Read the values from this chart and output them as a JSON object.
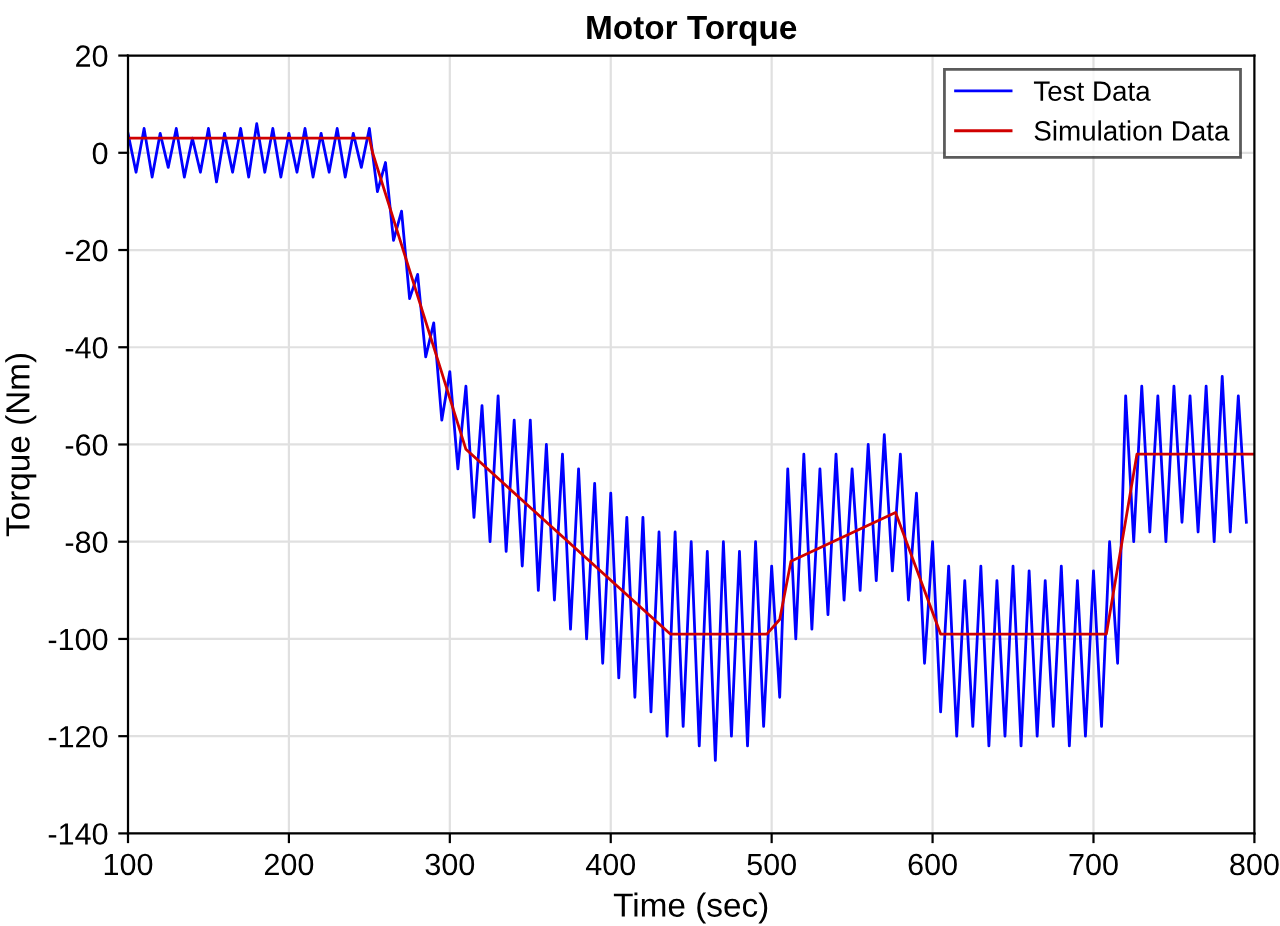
{
  "chart_data": {
    "type": "line",
    "title": "Motor Torque",
    "xlabel": "Time (sec)",
    "ylabel": "Torque (Nm)",
    "xlim": [
      100,
      800
    ],
    "xticks": [
      100,
      200,
      300,
      400,
      500,
      600,
      700,
      800
    ],
    "ylim": [
      -140,
      20
    ],
    "yticks": [
      -140,
      -120,
      -100,
      -80,
      -60,
      -40,
      -20,
      0,
      20
    ],
    "grid": true,
    "legend": "top right",
    "line_style": "solid",
    "series": [
      {
        "name": "Test Data",
        "color": "#0000ff",
        "x": [
          100,
          105,
          110,
          115,
          120,
          125,
          130,
          135,
          140,
          145,
          150,
          155,
          160,
          165,
          170,
          175,
          180,
          185,
          190,
          195,
          200,
          205,
          210,
          215,
          220,
          225,
          230,
          235,
          240,
          245,
          250,
          255,
          260,
          265,
          270,
          275,
          280,
          285,
          290,
          295,
          300,
          305,
          310,
          315,
          320,
          325,
          330,
          335,
          340,
          345,
          350,
          355,
          360,
          365,
          370,
          375,
          380,
          385,
          390,
          395,
          400,
          405,
          410,
          415,
          420,
          425,
          430,
          435,
          440,
          445,
          450,
          455,
          460,
          465,
          470,
          475,
          480,
          485,
          490,
          495,
          500,
          505,
          510,
          515,
          520,
          525,
          530,
          535,
          540,
          545,
          550,
          555,
          560,
          565,
          570,
          575,
          580,
          585,
          590,
          595,
          600,
          605,
          610,
          615,
          620,
          625,
          630,
          635,
          640,
          645,
          650,
          655,
          660,
          665,
          670,
          675,
          680,
          685,
          690,
          695,
          700,
          705,
          710,
          715,
          720,
          725,
          730,
          735,
          740,
          745,
          750,
          755,
          760,
          765,
          770,
          775,
          780,
          785,
          790,
          795
        ],
        "values": [
          4,
          -4,
          5,
          -5,
          4,
          -3,
          5,
          -5,
          3,
          -4,
          5,
          -6,
          4,
          -4,
          5,
          -5,
          6,
          -4,
          5,
          -5,
          4,
          -4,
          5,
          -5,
          4,
          -4,
          5,
          -5,
          4,
          -3,
          5,
          -8,
          -2,
          -18,
          -12,
          -30,
          -25,
          -42,
          -35,
          -55,
          -45,
          -65,
          -48,
          -75,
          -52,
          -80,
          -50,
          -82,
          -55,
          -85,
          -55,
          -90,
          -60,
          -92,
          -62,
          -98,
          -65,
          -100,
          -68,
          -105,
          -70,
          -108,
          -75,
          -112,
          -75,
          -115,
          -78,
          -120,
          -78,
          -118,
          -80,
          -122,
          -82,
          -125,
          -80,
          -120,
          -82,
          -122,
          -80,
          -118,
          -85,
          -112,
          -65,
          -100,
          -62,
          -98,
          -65,
          -95,
          -62,
          -92,
          -65,
          -90,
          -60,
          -88,
          -58,
          -86,
          -62,
          -92,
          -70,
          -105,
          -80,
          -115,
          -85,
          -120,
          -88,
          -118,
          -85,
          -122,
          -88,
          -120,
          -85,
          -122,
          -86,
          -120,
          -88,
          -118,
          -85,
          -122,
          -88,
          -120,
          -86,
          -118,
          -80,
          -105,
          -50,
          -80,
          -48,
          -78,
          -50,
          -80,
          -48,
          -76,
          -50,
          -78,
          -48,
          -80,
          -46,
          -78,
          -50,
          -76
        ]
      },
      {
        "name": "Simulation Data",
        "color": "#d00000",
        "x": [
          100,
          250,
          252,
          310,
          437,
          497,
          505,
          512,
          577,
          605,
          708,
          727,
          800
        ],
        "values": [
          3,
          3,
          0,
          -61,
          -99,
          -99,
          -96,
          -84,
          -74,
          -99,
          -99,
          -62,
          -62
        ]
      }
    ]
  }
}
